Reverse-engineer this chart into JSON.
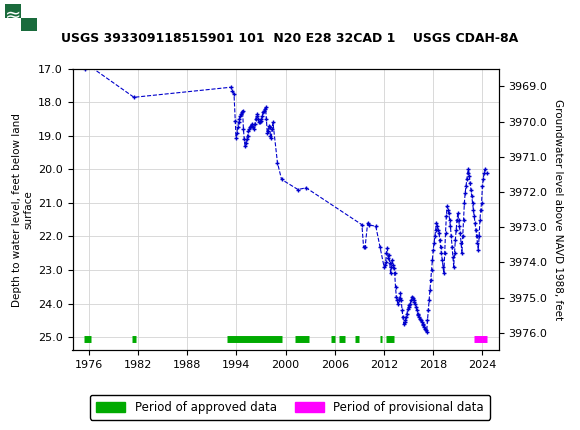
{
  "title": "USGS 393309118515901 101  N20 E28 32CAD 1    USGS CDAH-8A",
  "ylabel_left": "Depth to water level, feet below land\nsurface",
  "ylabel_right": "Groundwater level above NAVD 1988, feet",
  "xlim": [
    1974,
    2026
  ],
  "ylim_left": [
    17.0,
    25.4
  ],
  "ylim_right": [
    3976.5,
    3968.5
  ],
  "xticks": [
    1976,
    1982,
    1988,
    1994,
    2000,
    2006,
    2012,
    2018,
    2024
  ],
  "yticks_left": [
    17.0,
    18.0,
    19.0,
    20.0,
    21.0,
    22.0,
    23.0,
    24.0,
    25.0
  ],
  "yticks_right": [
    3976.0,
    3975.0,
    3974.0,
    3973.0,
    3972.0,
    3971.0,
    3970.0,
    3969.0
  ],
  "header_color": "#1a6b3c",
  "line_color": "#0000CC",
  "marker": "+",
  "linestyle": "--",
  "approved_color": "#00AA00",
  "provisional_color": "#FF00FF",
  "legend_approved": "Period of approved data",
  "legend_provisional": "Period of provisional data",
  "data_points": [
    [
      1975.5,
      17.0
    ],
    [
      1975.7,
      16.85
    ],
    [
      1981.5,
      17.85
    ],
    [
      1993.3,
      17.55
    ],
    [
      1993.5,
      17.65
    ],
    [
      1993.7,
      17.75
    ],
    [
      1993.85,
      18.55
    ],
    [
      1993.95,
      19.05
    ],
    [
      1994.05,
      18.9
    ],
    [
      1994.15,
      18.75
    ],
    [
      1994.25,
      18.6
    ],
    [
      1994.35,
      18.5
    ],
    [
      1994.45,
      18.4
    ],
    [
      1994.55,
      18.35
    ],
    [
      1994.65,
      18.3
    ],
    [
      1994.75,
      18.25
    ],
    [
      1994.85,
      18.8
    ],
    [
      1994.95,
      19.1
    ],
    [
      1995.05,
      19.3
    ],
    [
      1995.15,
      19.2
    ],
    [
      1995.25,
      19.1
    ],
    [
      1995.35,
      19.0
    ],
    [
      1995.45,
      18.85
    ],
    [
      1995.55,
      18.8
    ],
    [
      1995.65,
      18.75
    ],
    [
      1995.75,
      18.7
    ],
    [
      1995.85,
      18.65
    ],
    [
      1995.95,
      18.7
    ],
    [
      1996.05,
      18.75
    ],
    [
      1996.15,
      18.8
    ],
    [
      1996.25,
      18.65
    ],
    [
      1996.35,
      18.5
    ],
    [
      1996.45,
      18.4
    ],
    [
      1996.55,
      18.35
    ],
    [
      1996.65,
      18.5
    ],
    [
      1996.75,
      18.6
    ],
    [
      1996.85,
      18.6
    ],
    [
      1996.95,
      18.55
    ],
    [
      1997.05,
      18.5
    ],
    [
      1997.15,
      18.4
    ],
    [
      1997.25,
      18.3
    ],
    [
      1997.35,
      18.25
    ],
    [
      1997.45,
      18.2
    ],
    [
      1997.55,
      18.15
    ],
    [
      1997.65,
      18.5
    ],
    [
      1997.75,
      18.9
    ],
    [
      1997.85,
      18.85
    ],
    [
      1997.95,
      18.7
    ],
    [
      1998.05,
      18.75
    ],
    [
      1998.15,
      19.0
    ],
    [
      1998.25,
      19.05
    ],
    [
      1998.35,
      18.8
    ],
    [
      1998.45,
      18.6
    ],
    [
      1999.0,
      19.8
    ],
    [
      1999.5,
      20.3
    ],
    [
      2001.5,
      20.6
    ],
    [
      2002.5,
      20.55
    ],
    [
      2009.3,
      21.65
    ],
    [
      2009.5,
      22.3
    ],
    [
      2009.7,
      22.3
    ],
    [
      2010.0,
      21.6
    ],
    [
      2010.15,
      21.65
    ],
    [
      2011.0,
      21.7
    ],
    [
      2011.5,
      22.3
    ],
    [
      2012.0,
      22.9
    ],
    [
      2012.1,
      22.85
    ],
    [
      2012.2,
      22.75
    ],
    [
      2012.3,
      22.5
    ],
    [
      2012.4,
      22.35
    ],
    [
      2012.5,
      22.65
    ],
    [
      2012.6,
      22.55
    ],
    [
      2012.7,
      22.8
    ],
    [
      2012.8,
      23.1
    ],
    [
      2012.9,
      22.9
    ],
    [
      2013.0,
      22.7
    ],
    [
      2013.1,
      22.85
    ],
    [
      2013.2,
      22.95
    ],
    [
      2013.3,
      23.1
    ],
    [
      2013.4,
      23.5
    ],
    [
      2013.5,
      23.8
    ],
    [
      2013.6,
      23.9
    ],
    [
      2013.7,
      24.0
    ],
    [
      2013.8,
      23.9
    ],
    [
      2013.9,
      23.85
    ],
    [
      2014.0,
      23.7
    ],
    [
      2014.1,
      23.9
    ],
    [
      2014.2,
      24.2
    ],
    [
      2014.3,
      24.4
    ],
    [
      2014.4,
      24.6
    ],
    [
      2014.5,
      24.55
    ],
    [
      2014.6,
      24.5
    ],
    [
      2014.7,
      24.4
    ],
    [
      2014.8,
      24.3
    ],
    [
      2014.9,
      24.15
    ],
    [
      2015.0,
      24.1
    ],
    [
      2015.1,
      24.05
    ],
    [
      2015.2,
      24.0
    ],
    [
      2015.3,
      23.9
    ],
    [
      2015.4,
      23.8
    ],
    [
      2015.5,
      23.85
    ],
    [
      2015.6,
      23.9
    ],
    [
      2015.7,
      23.95
    ],
    [
      2015.8,
      24.0
    ],
    [
      2015.9,
      24.1
    ],
    [
      2016.0,
      24.2
    ],
    [
      2016.1,
      24.3
    ],
    [
      2016.2,
      24.35
    ],
    [
      2016.3,
      24.4
    ],
    [
      2016.4,
      24.45
    ],
    [
      2016.5,
      24.5
    ],
    [
      2016.6,
      24.55
    ],
    [
      2016.7,
      24.6
    ],
    [
      2016.8,
      24.65
    ],
    [
      2016.9,
      24.7
    ],
    [
      2017.0,
      24.75
    ],
    [
      2017.1,
      24.8
    ],
    [
      2017.2,
      24.85
    ],
    [
      2017.3,
      24.5
    ],
    [
      2017.4,
      24.2
    ],
    [
      2017.5,
      23.9
    ],
    [
      2017.6,
      23.6
    ],
    [
      2017.7,
      23.3
    ],
    [
      2017.8,
      23.0
    ],
    [
      2017.9,
      22.7
    ],
    [
      2018.0,
      22.4
    ],
    [
      2018.1,
      22.2
    ],
    [
      2018.2,
      22.0
    ],
    [
      2018.3,
      21.8
    ],
    [
      2018.4,
      21.6
    ],
    [
      2018.5,
      21.7
    ],
    [
      2018.6,
      21.8
    ],
    [
      2018.7,
      21.9
    ],
    [
      2018.8,
      22.1
    ],
    [
      2018.9,
      22.3
    ],
    [
      2019.0,
      22.5
    ],
    [
      2019.1,
      22.7
    ],
    [
      2019.2,
      22.9
    ],
    [
      2019.3,
      23.1
    ],
    [
      2019.4,
      22.5
    ],
    [
      2019.5,
      21.9
    ],
    [
      2019.6,
      21.4
    ],
    [
      2019.7,
      21.1
    ],
    [
      2019.8,
      21.2
    ],
    [
      2019.9,
      21.3
    ],
    [
      2020.0,
      21.5
    ],
    [
      2020.1,
      21.7
    ],
    [
      2020.2,
      22.0
    ],
    [
      2020.3,
      22.3
    ],
    [
      2020.4,
      22.6
    ],
    [
      2020.5,
      22.9
    ],
    [
      2020.6,
      22.5
    ],
    [
      2020.7,
      22.1
    ],
    [
      2020.8,
      21.8
    ],
    [
      2020.9,
      21.5
    ],
    [
      2021.0,
      21.3
    ],
    [
      2021.1,
      21.5
    ],
    [
      2021.2,
      21.7
    ],
    [
      2021.3,
      21.9
    ],
    [
      2021.4,
      22.2
    ],
    [
      2021.5,
      22.5
    ],
    [
      2021.6,
      22.0
    ],
    [
      2021.7,
      21.5
    ],
    [
      2021.8,
      21.0
    ],
    [
      2021.9,
      20.7
    ],
    [
      2022.0,
      20.5
    ],
    [
      2022.1,
      20.3
    ],
    [
      2022.2,
      20.1
    ],
    [
      2022.3,
      20.0
    ],
    [
      2022.4,
      20.2
    ],
    [
      2022.5,
      20.4
    ],
    [
      2022.6,
      20.6
    ],
    [
      2022.7,
      20.8
    ],
    [
      2022.8,
      21.0
    ],
    [
      2022.9,
      21.2
    ],
    [
      2023.0,
      21.4
    ],
    [
      2023.1,
      21.6
    ],
    [
      2023.2,
      21.8
    ],
    [
      2023.3,
      22.0
    ],
    [
      2023.4,
      22.2
    ],
    [
      2023.5,
      22.4
    ],
    [
      2023.6,
      22.0
    ],
    [
      2023.7,
      21.5
    ],
    [
      2023.8,
      21.2
    ],
    [
      2023.9,
      21.0
    ],
    [
      2024.0,
      20.5
    ],
    [
      2024.1,
      20.3
    ],
    [
      2024.2,
      20.1
    ],
    [
      2024.3,
      20.0
    ],
    [
      2024.5,
      20.1
    ]
  ],
  "approved_bars": [
    [
      1975.4,
      1976.3
    ],
    [
      1981.3,
      1981.7
    ],
    [
      1992.9,
      1999.5
    ],
    [
      2001.2,
      2002.8
    ],
    [
      2005.5,
      2006.0
    ],
    [
      2006.5,
      2007.3
    ],
    [
      2008.5,
      2009.0
    ],
    [
      2011.5,
      2011.8
    ],
    [
      2012.3,
      2013.2
    ]
  ],
  "provisional_bars": [
    [
      2023.0,
      2024.6
    ]
  ],
  "bar_y": 25.05,
  "bar_linewidth": 5
}
